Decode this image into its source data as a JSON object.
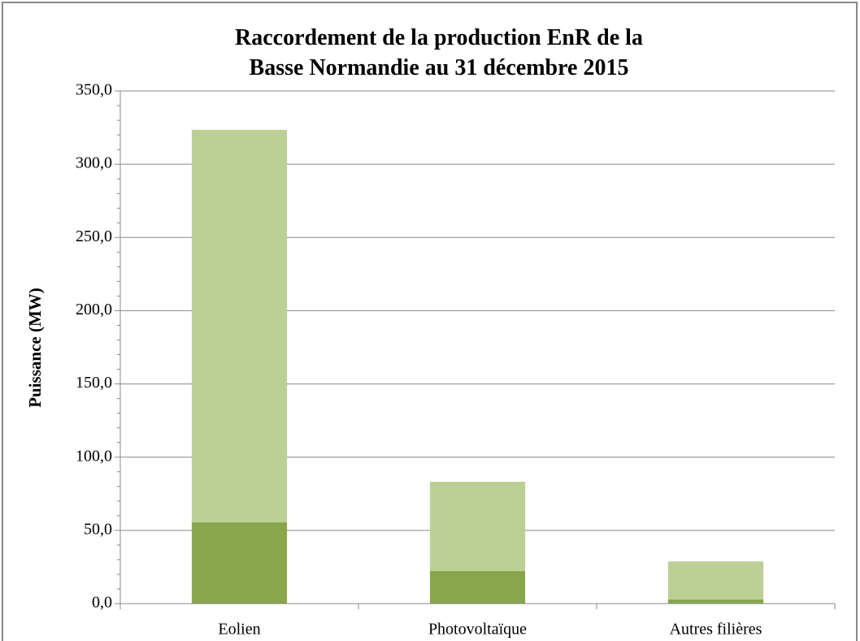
{
  "chart_data": {
    "type": "bar",
    "stacked": true,
    "title": "Raccordement de la production EnR de la\nBasse Normandie au 31 décembre 2015",
    "y_label": "Puissance (MW)",
    "categories": [
      "Eolien",
      "Photovoltaïque",
      "Autres filières"
    ],
    "series": [
      {
        "color": "#8aa64c",
        "values": [
          55.5,
          22.2,
          2.8
        ]
      },
      {
        "color": "#bcd096",
        "values": [
          268,
          61,
          26
        ]
      }
    ],
    "ylim": [
      0,
      350
    ],
    "yticks": [
      {
        "value": 0,
        "label": "0,0"
      },
      {
        "value": 50,
        "label": "50,0"
      },
      {
        "value": 100,
        "label": "100,0"
      },
      {
        "value": 150,
        "label": "150,0"
      },
      {
        "value": 200,
        "label": "200,0"
      },
      {
        "value": 250,
        "label": "250,0"
      },
      {
        "value": 300,
        "label": "300,0"
      },
      {
        "value": 350,
        "label": "350,0"
      }
    ],
    "grid": true
  }
}
